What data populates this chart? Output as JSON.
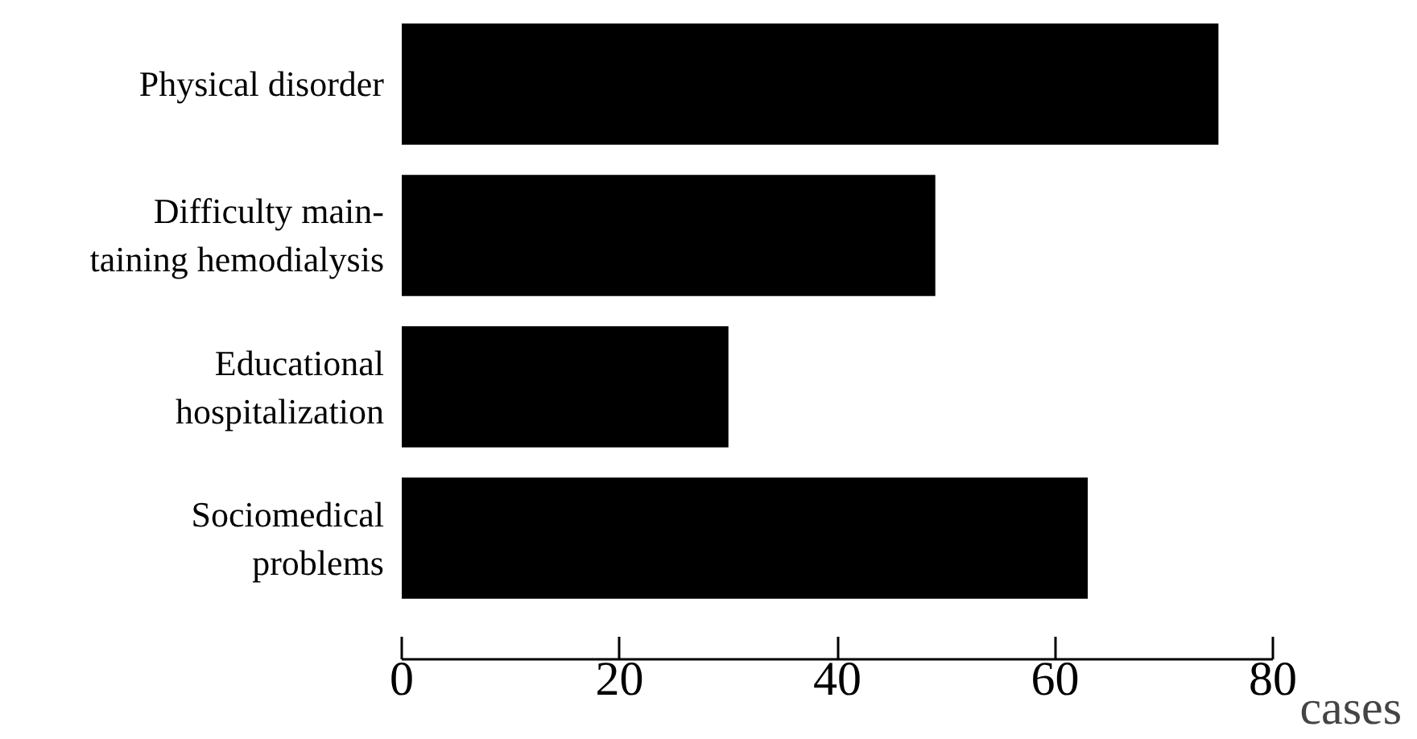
{
  "chart_data": {
    "type": "bar",
    "orientation": "horizontal",
    "categories": [
      "Physical disorder",
      "Difficulty main-\ntaining hemodialysis",
      "Educational\nhospitalization",
      "Sociomedical\nproblems"
    ],
    "values": [
      75,
      49,
      30,
      63
    ],
    "color": "#000000",
    "xlim": [
      0,
      80
    ],
    "xticks": [
      0,
      20,
      40,
      60,
      80
    ],
    "xlabel": "cases",
    "grid": false
  }
}
